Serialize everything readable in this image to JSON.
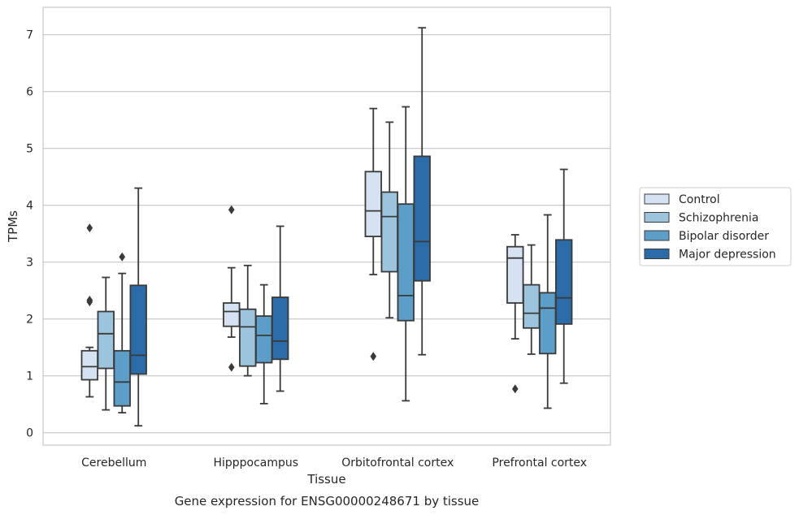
{
  "chart_data": {
    "type": "box",
    "title": "Gene expression for ENSG00000248671 by tissue",
    "xlabel": "Tissue",
    "ylabel": "TPMs",
    "ylim": [
      -0.22,
      7.48
    ],
    "yticks": [
      0,
      1,
      2,
      3,
      4,
      5,
      6,
      7
    ],
    "grid": true,
    "legend_position": "right",
    "categories": [
      "Cerebellum",
      "Hipppocampus",
      "Orbitofrontal cortex",
      "Prefrontal cortex"
    ],
    "series": [
      {
        "name": "Control",
        "color": "#d4e2f1",
        "boxes": [
          {
            "whisker_low": 0.63,
            "q1": 0.93,
            "median": 1.16,
            "q3": 1.44,
            "whisker_high": 1.5,
            "outliers": [
              2.3,
              2.33,
              3.6
            ]
          },
          {
            "whisker_low": 1.68,
            "q1": 1.87,
            "median": 2.13,
            "q3": 2.28,
            "whisker_high": 2.9,
            "outliers": [
              1.15,
              3.92
            ]
          },
          {
            "whisker_low": 2.78,
            "q1": 3.45,
            "median": 3.9,
            "q3": 4.59,
            "whisker_high": 5.7,
            "outliers": [
              1.34
            ]
          },
          {
            "whisker_low": 1.65,
            "q1": 2.28,
            "median": 3.07,
            "q3": 3.27,
            "whisker_high": 3.48,
            "outliers": [
              0.77
            ]
          }
        ]
      },
      {
        "name": "Schizophrenia",
        "color": "#9dc4dd",
        "boxes": [
          {
            "whisker_low": 0.4,
            "q1": 1.13,
            "median": 1.74,
            "q3": 2.13,
            "whisker_high": 2.73,
            "outliers": []
          },
          {
            "whisker_low": 1.0,
            "q1": 1.17,
            "median": 1.86,
            "q3": 2.17,
            "whisker_high": 2.94,
            "outliers": []
          },
          {
            "whisker_low": 2.02,
            "q1": 2.83,
            "median": 3.8,
            "q3": 4.23,
            "whisker_high": 5.46,
            "outliers": []
          },
          {
            "whisker_low": 1.38,
            "q1": 1.84,
            "median": 2.1,
            "q3": 2.6,
            "whisker_high": 3.3,
            "outliers": []
          }
        ]
      },
      {
        "name": "Bipolar disorder",
        "color": "#5c9ec8",
        "boxes": [
          {
            "whisker_low": 0.35,
            "q1": 0.47,
            "median": 0.89,
            "q3": 1.44,
            "whisker_high": 2.8,
            "outliers": [
              3.09
            ]
          },
          {
            "whisker_low": 0.51,
            "q1": 1.23,
            "median": 1.71,
            "q3": 2.05,
            "whisker_high": 2.6,
            "outliers": []
          },
          {
            "whisker_low": 0.56,
            "q1": 1.97,
            "median": 2.41,
            "q3": 4.02,
            "whisker_high": 5.73,
            "outliers": []
          },
          {
            "whisker_low": 0.43,
            "q1": 1.39,
            "median": 2.19,
            "q3": 2.46,
            "whisker_high": 3.83,
            "outliers": []
          }
        ]
      },
      {
        "name": "Major depression",
        "color": "#2b6ca8",
        "boxes": [
          {
            "whisker_low": 0.12,
            "q1": 1.03,
            "median": 1.36,
            "q3": 2.59,
            "whisker_high": 4.3,
            "outliers": []
          },
          {
            "whisker_low": 0.73,
            "q1": 1.29,
            "median": 1.61,
            "q3": 2.38,
            "whisker_high": 3.63,
            "outliers": []
          },
          {
            "whisker_low": 1.37,
            "q1": 2.67,
            "median": 3.36,
            "q3": 4.86,
            "whisker_high": 7.12,
            "outliers": []
          },
          {
            "whisker_low": 0.87,
            "q1": 1.91,
            "median": 2.37,
            "q3": 3.39,
            "whisker_high": 4.63,
            "outliers": []
          }
        ]
      }
    ]
  }
}
